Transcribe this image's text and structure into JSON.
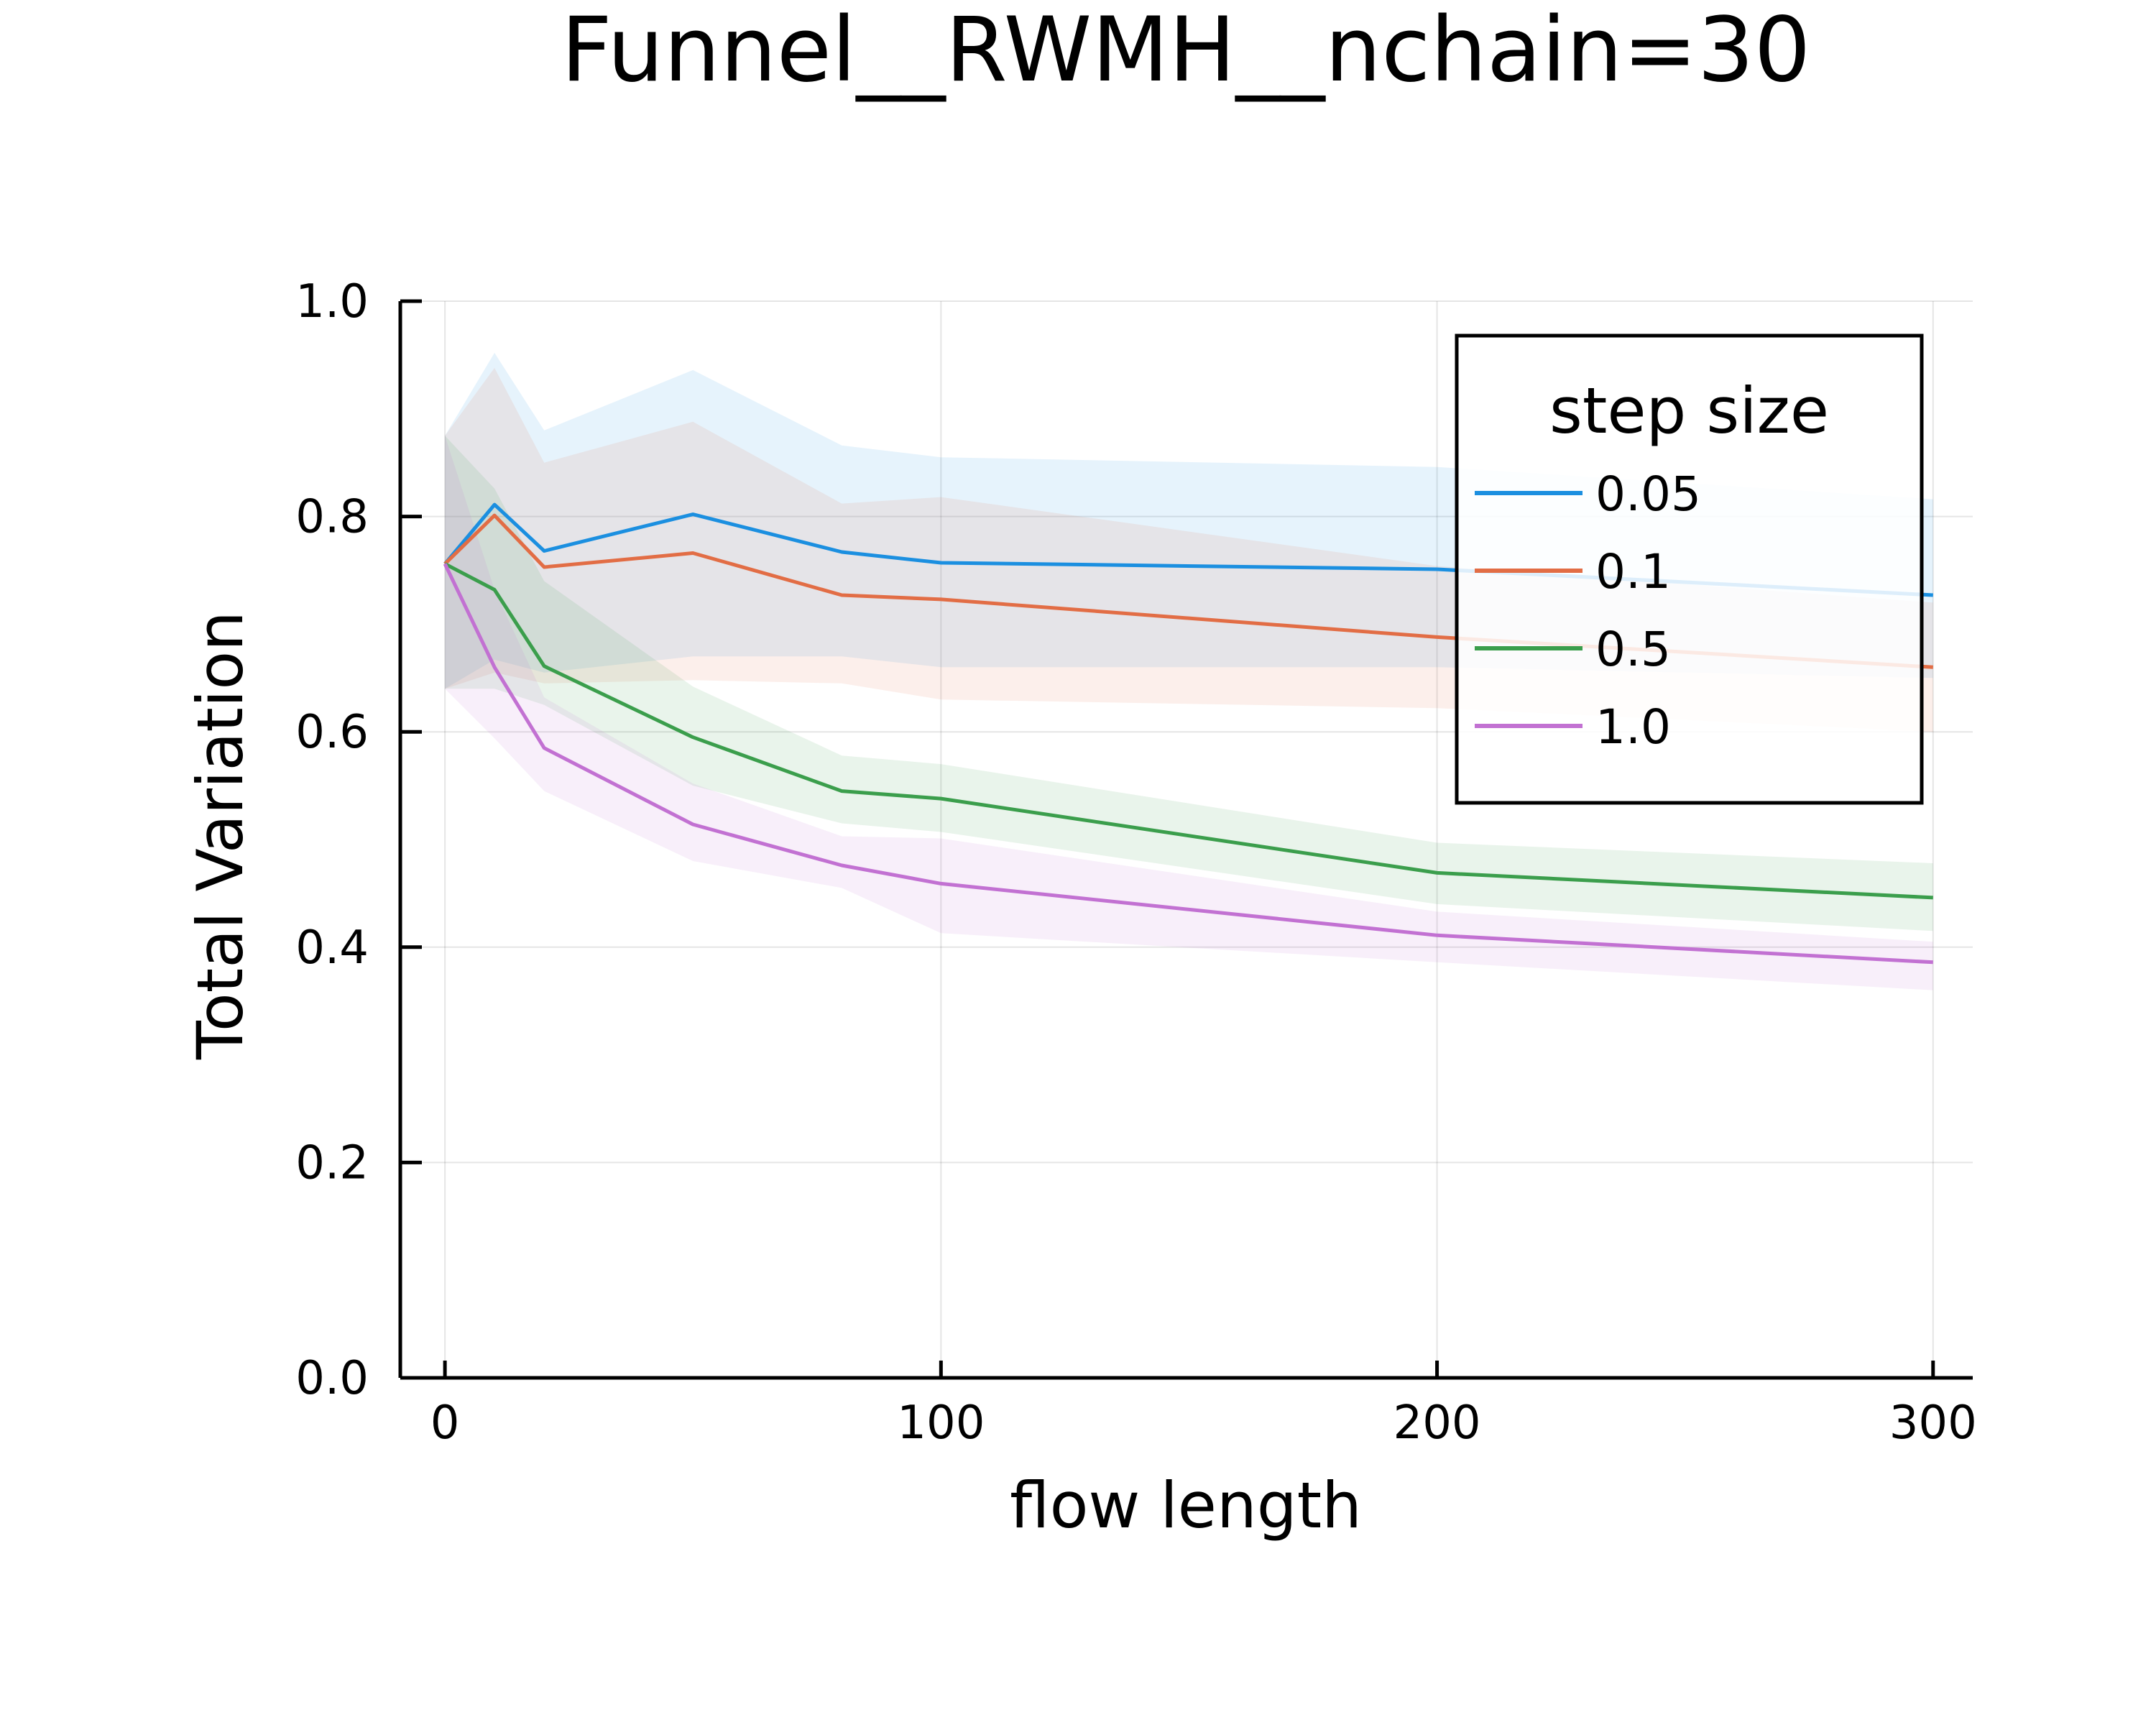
{
  "chart_data": {
    "type": "line",
    "title": "Funnel__RWMH__nchain=30",
    "xlabel": "flow length",
    "ylabel": "Total Variation",
    "xlim": [
      -9,
      308
    ],
    "ylim": [
      0.0,
      1.0
    ],
    "xticks": [
      0,
      100,
      200,
      300
    ],
    "xtick_labels": [
      "0",
      "100",
      "200",
      "300"
    ],
    "yticks": [
      0.0,
      0.2,
      0.4,
      0.6,
      0.8,
      1.0
    ],
    "ytick_labels": [
      "0.0",
      "0.2",
      "0.4",
      "0.6",
      "0.8",
      "1.0"
    ],
    "grid": true,
    "legend": {
      "title": "step size",
      "position": "top-right"
    },
    "x": [
      0,
      10,
      20,
      50,
      80,
      100,
      200,
      300
    ],
    "series": [
      {
        "name": "0.05",
        "color": "#1b8fe0",
        "values": [
          0.756,
          0.811,
          0.768,
          0.802,
          0.767,
          0.757,
          0.751,
          0.727
        ],
        "lower": [
          0.64,
          0.667,
          0.655,
          0.67,
          0.67,
          0.66,
          0.66,
          0.65
        ],
        "upper": [
          0.875,
          0.952,
          0.88,
          0.936,
          0.866,
          0.855,
          0.846,
          0.816
        ]
      },
      {
        "name": "0.1",
        "color": "#e26d45",
        "values": [
          0.756,
          0.801,
          0.753,
          0.766,
          0.727,
          0.723,
          0.688,
          0.66
        ],
        "lower": [
          0.64,
          0.655,
          0.645,
          0.648,
          0.645,
          0.63,
          0.622,
          0.6
        ],
        "upper": [
          0.875,
          0.938,
          0.85,
          0.888,
          0.812,
          0.818,
          0.754,
          0.72
        ]
      },
      {
        "name": "0.5",
        "color": "#3b9e4c",
        "values": [
          0.756,
          0.732,
          0.661,
          0.595,
          0.545,
          0.538,
          0.469,
          0.446
        ],
        "lower": [
          0.64,
          0.64,
          0.625,
          0.55,
          0.515,
          0.507,
          0.44,
          0.415
        ],
        "upper": [
          0.875,
          0.826,
          0.74,
          0.642,
          0.578,
          0.57,
          0.497,
          0.478
        ]
      },
      {
        "name": "1.0",
        "color": "#c271d2",
        "values": [
          0.756,
          0.66,
          0.585,
          0.514,
          0.476,
          0.459,
          0.411,
          0.386
        ],
        "lower": [
          0.64,
          0.594,
          0.545,
          0.48,
          0.455,
          0.413,
          0.386,
          0.36
        ],
        "upper": [
          0.875,
          0.732,
          0.632,
          0.552,
          0.503,
          0.501,
          0.433,
          0.405
        ]
      }
    ]
  }
}
